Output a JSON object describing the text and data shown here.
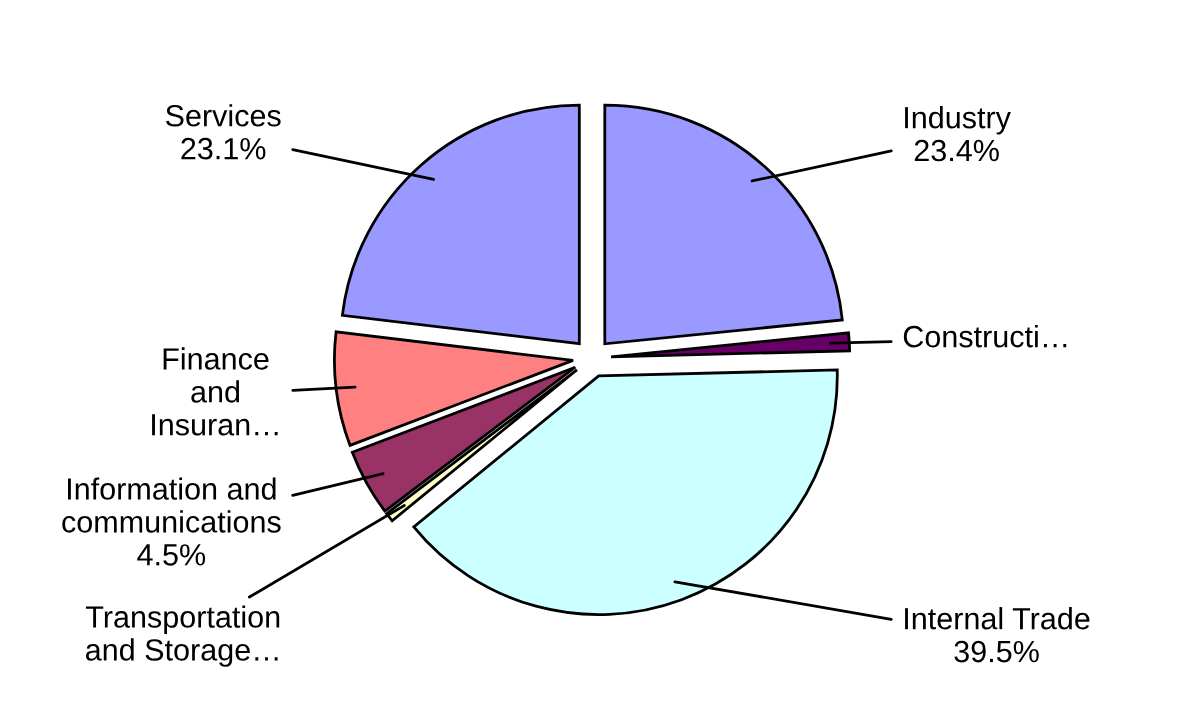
{
  "chart_data": {
    "type": "pie",
    "categories": [
      "Industry",
      "Constructi…",
      "Internal Trade",
      "Transportation\nand Storage…",
      "Information and\ncommunications",
      "Finance\nand\nInsuran…",
      "Services"
    ],
    "values": [
      23.4,
      1.2,
      39.5,
      0.6,
      4.5,
      7.7,
      23.1
    ],
    "value_labels": [
      "23.4%",
      null,
      "39.5%",
      null,
      "4.5%",
      null,
      "23.1%"
    ],
    "colors": [
      "#9999ff",
      "#660066",
      "#ccffff",
      "#ffffcc",
      "#993366",
      "#ff8080",
      "#9999ff"
    ]
  }
}
